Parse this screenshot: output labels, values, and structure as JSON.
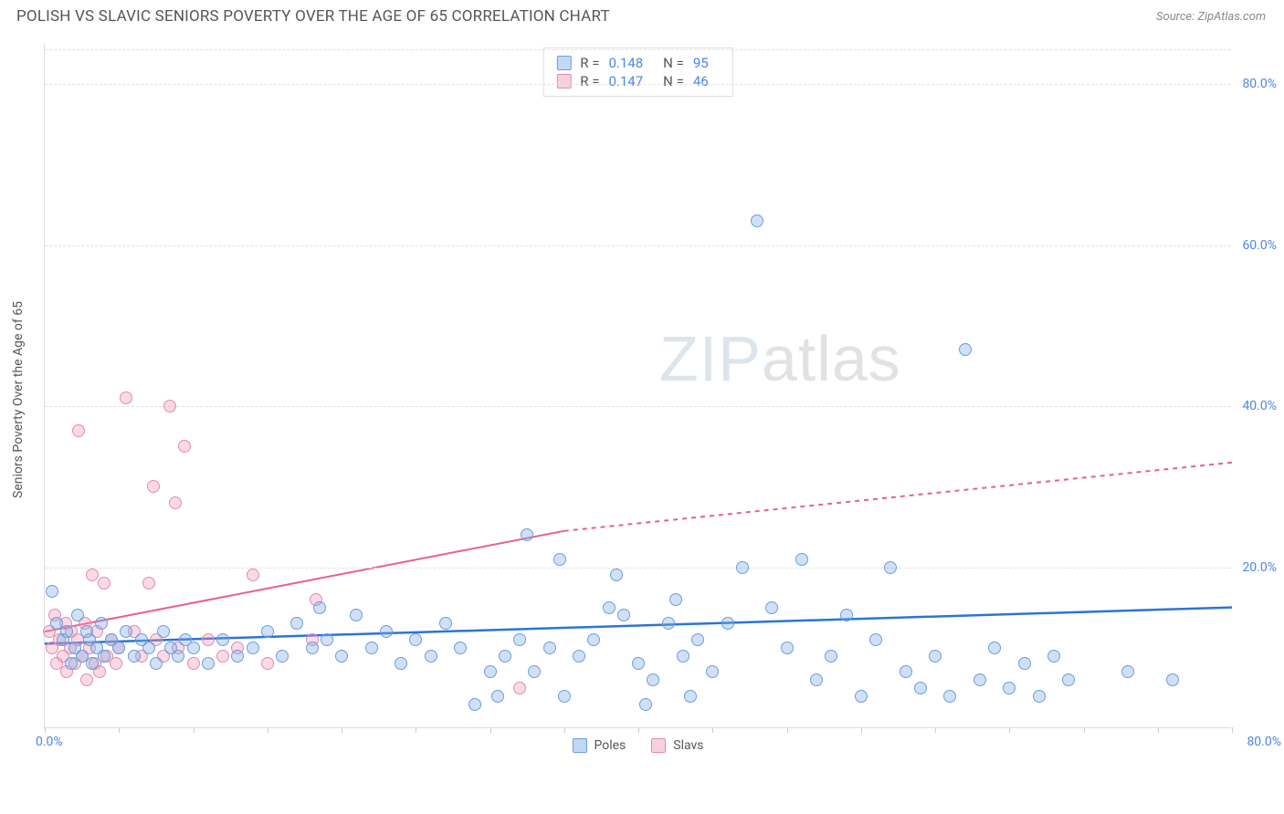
{
  "header": {
    "title": "POLISH VS SLAVIC SENIORS POVERTY OVER THE AGE OF 65 CORRELATION CHART",
    "source_prefix": "Source: ",
    "source_name": "ZipAtlas.com"
  },
  "chart": {
    "type": "scatter",
    "ylabel": "Seniors Poverty Over the Age of 65",
    "watermark_zip": "ZIP",
    "watermark_atlas": "atlas",
    "background_color": "#ffffff",
    "grid_color": "#e0e0e0",
    "axis_color": "#dddddd",
    "label_color": "#555555",
    "tick_label_color": "#4a86e8",
    "xlim": [
      0,
      80
    ],
    "ylim": [
      0,
      85
    ],
    "yticks": [
      20,
      40,
      60,
      80
    ],
    "ytick_labels": [
      "20.0%",
      "40.0%",
      "60.0%",
      "80.0%"
    ],
    "xtick_positions": [
      0,
      5,
      10,
      15,
      20,
      25,
      30,
      35,
      40,
      45,
      50,
      55,
      60,
      65,
      70,
      75,
      80
    ],
    "xaxis_min_label": "0.0%",
    "xaxis_max_label": "80.0%",
    "marker_size": 14,
    "series": {
      "poles": {
        "label": "Poles",
        "color_fill": "rgba(120,170,230,0.35)",
        "color_stroke": "#6a9de0",
        "trend_color": "#2b74d8",
        "trend_width": 2.5,
        "trend_line": {
          "x1": 0,
          "y1": 10.5,
          "x2": 80,
          "y2": 15.0
        },
        "points": [
          [
            0.5,
            17
          ],
          [
            0.8,
            13
          ],
          [
            1.2,
            11
          ],
          [
            1.5,
            12
          ],
          [
            1.8,
            8
          ],
          [
            2.0,
            10
          ],
          [
            2.2,
            14
          ],
          [
            2.5,
            9
          ],
          [
            2.8,
            12
          ],
          [
            3.0,
            11
          ],
          [
            3.2,
            8
          ],
          [
            3.5,
            10
          ],
          [
            3.8,
            13
          ],
          [
            4.0,
            9
          ],
          [
            4.5,
            11
          ],
          [
            5.0,
            10
          ],
          [
            5.5,
            12
          ],
          [
            6.0,
            9
          ],
          [
            6.5,
            11
          ],
          [
            7.0,
            10
          ],
          [
            7.5,
            8
          ],
          [
            8.0,
            12
          ],
          [
            8.5,
            10
          ],
          [
            9.0,
            9
          ],
          [
            9.5,
            11
          ],
          [
            10,
            10
          ],
          [
            11,
            8
          ],
          [
            12,
            11
          ],
          [
            13,
            9
          ],
          [
            14,
            10
          ],
          [
            15,
            12
          ],
          [
            16,
            9
          ],
          [
            17,
            13
          ],
          [
            18,
            10
          ],
          [
            18.5,
            15
          ],
          [
            19,
            11
          ],
          [
            20,
            9
          ],
          [
            21,
            14
          ],
          [
            22,
            10
          ],
          [
            23,
            12
          ],
          [
            24,
            8
          ],
          [
            25,
            11
          ],
          [
            26,
            9
          ],
          [
            27,
            13
          ],
          [
            28,
            10
          ],
          [
            29,
            3
          ],
          [
            30,
            7
          ],
          [
            30.5,
            4
          ],
          [
            31,
            9
          ],
          [
            32,
            11
          ],
          [
            32.5,
            24
          ],
          [
            33,
            7
          ],
          [
            34,
            10
          ],
          [
            34.7,
            21
          ],
          [
            35,
            4
          ],
          [
            36,
            9
          ],
          [
            37,
            11
          ],
          [
            38,
            15
          ],
          [
            38.5,
            19
          ],
          [
            39,
            14
          ],
          [
            40,
            8
          ],
          [
            40.5,
            3
          ],
          [
            41,
            6
          ],
          [
            42,
            13
          ],
          [
            42.5,
            16
          ],
          [
            43,
            9
          ],
          [
            43.5,
            4
          ],
          [
            44,
            11
          ],
          [
            45,
            7
          ],
          [
            46,
            13
          ],
          [
            47,
            20
          ],
          [
            48,
            63
          ],
          [
            49,
            15
          ],
          [
            50,
            10
          ],
          [
            51,
            21
          ],
          [
            52,
            6
          ],
          [
            53,
            9
          ],
          [
            54,
            14
          ],
          [
            55,
            4
          ],
          [
            56,
            11
          ],
          [
            57,
            20
          ],
          [
            58,
            7
          ],
          [
            59,
            5
          ],
          [
            60,
            9
          ],
          [
            61,
            4
          ],
          [
            62,
            47
          ],
          [
            63,
            6
          ],
          [
            64,
            10
          ],
          [
            65,
            5
          ],
          [
            66,
            8
          ],
          [
            67,
            4
          ],
          [
            68,
            9
          ],
          [
            69,
            6
          ],
          [
            73,
            7
          ],
          [
            76,
            6
          ]
        ]
      },
      "slavs": {
        "label": "Slavs",
        "color_fill": "rgba(240,150,180,0.35)",
        "color_stroke": "#e58ab0",
        "trend_color": "#e85f8e",
        "trend_width": 2,
        "trend_solid": {
          "x1": 0,
          "y1": 12.0,
          "x2": 35,
          "y2": 24.5
        },
        "trend_dashed": {
          "x1": 35,
          "y1": 24.5,
          "x2": 80,
          "y2": 33.0
        },
        "points": [
          [
            0.3,
            12
          ],
          [
            0.5,
            10
          ],
          [
            0.7,
            14
          ],
          [
            0.8,
            8
          ],
          [
            1.0,
            11
          ],
          [
            1.2,
            9
          ],
          [
            1.4,
            13
          ],
          [
            1.5,
            7
          ],
          [
            1.7,
            10
          ],
          [
            1.8,
            12
          ],
          [
            2.0,
            8
          ],
          [
            2.2,
            11
          ],
          [
            2.3,
            37
          ],
          [
            2.5,
            9
          ],
          [
            2.7,
            13
          ],
          [
            2.8,
            6
          ],
          [
            3.0,
            10
          ],
          [
            3.2,
            19
          ],
          [
            3.4,
            8
          ],
          [
            3.5,
            12
          ],
          [
            3.7,
            7
          ],
          [
            4.0,
            18
          ],
          [
            4.2,
            9
          ],
          [
            4.5,
            11
          ],
          [
            4.8,
            8
          ],
          [
            5.0,
            10
          ],
          [
            5.5,
            41
          ],
          [
            6.0,
            12
          ],
          [
            6.5,
            9
          ],
          [
            7.0,
            18
          ],
          [
            7.3,
            30
          ],
          [
            7.5,
            11
          ],
          [
            8.0,
            9
          ],
          [
            8.4,
            40
          ],
          [
            8.8,
            28
          ],
          [
            9.0,
            10
          ],
          [
            9.4,
            35
          ],
          [
            10,
            8
          ],
          [
            11,
            11
          ],
          [
            12,
            9
          ],
          [
            13,
            10
          ],
          [
            14,
            19
          ],
          [
            15,
            8
          ],
          [
            18,
            11
          ],
          [
            18.3,
            16
          ],
          [
            32,
            5
          ]
        ]
      }
    },
    "stats_box": {
      "rows": [
        {
          "swatch": "blue",
          "r_label": "R =",
          "r_value": "0.148",
          "n_label": "N =",
          "n_value": "95"
        },
        {
          "swatch": "pink",
          "r_label": "R =",
          "r_value": "0.147",
          "n_label": "N =",
          "n_value": "46"
        }
      ]
    }
  }
}
